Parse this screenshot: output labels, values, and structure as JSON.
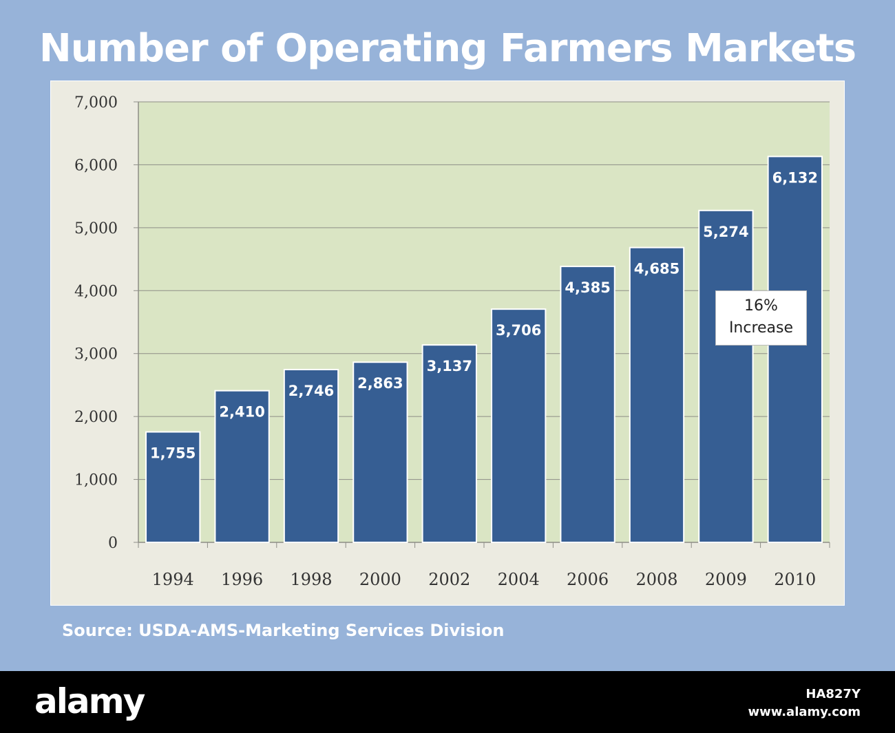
{
  "title": "Number of Operating Farmers Markets",
  "source": "Source:  USDA-AMS-Marketing Services Division",
  "annotation": {
    "line1": "16%",
    "line2": "Increase"
  },
  "watermark": {
    "logo": "alamy",
    "image_id": "HA827Y",
    "url": "www.alamy.com"
  },
  "colors": {
    "background": "#97b3d9",
    "plot_area": "#dae5c4",
    "bar": "#365e93",
    "panel": "#ecebe1",
    "footer": "#000000"
  },
  "chart_data": {
    "type": "bar",
    "title": "Number of Operating Farmers Markets",
    "xlabel": "",
    "ylabel": "",
    "categories": [
      "1994",
      "1996",
      "1998",
      "2000",
      "2002",
      "2004",
      "2006",
      "2008",
      "2009",
      "2010"
    ],
    "values": [
      1755,
      2410,
      2746,
      2863,
      3137,
      3706,
      4385,
      4685,
      5274,
      6132
    ],
    "value_labels": [
      "1,755",
      "2,410",
      "2,746",
      "2,863",
      "3,137",
      "3,706",
      "4,385",
      "4,685",
      "5,274",
      "6,132"
    ],
    "ylim": [
      0,
      7000
    ],
    "yticks": [
      0,
      1000,
      2000,
      3000,
      4000,
      5000,
      6000,
      7000
    ],
    "ytick_labels": [
      "0",
      "1,000",
      "2,000",
      "3,000",
      "4,000",
      "5,000",
      "6,000",
      "7,000"
    ],
    "grid": true,
    "legend": "none"
  }
}
